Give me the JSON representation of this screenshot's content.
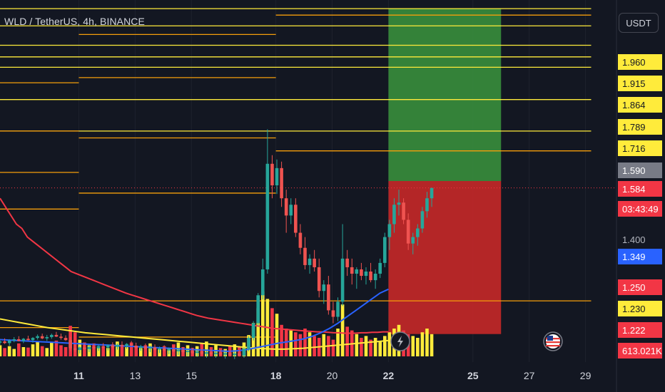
{
  "header": {
    "symbol_title": "WLD / TetherUS, 4h, BINANCE",
    "currency_button": "USDT"
  },
  "price_tags": [
    {
      "label": "1.960",
      "bg": "#ffeb3b",
      "fg": "#131722"
    },
    {
      "label": "1.915",
      "bg": "#ffeb3b",
      "fg": "#131722"
    },
    {
      "label": "1.864",
      "bg": "#ffeb3b",
      "fg": "#131722"
    },
    {
      "label": "1.789",
      "bg": "#ffeb3b",
      "fg": "#131722"
    },
    {
      "label": "1.716",
      "bg": "#ffeb3b",
      "fg": "#131722"
    },
    {
      "label": "1.590",
      "bg": "#787b86",
      "fg": "#ffffff"
    },
    {
      "label": "1.584",
      "bg": "#f23645",
      "fg": "#ffffff"
    },
    {
      "label": "03:43:49",
      "bg": "#f23645",
      "fg": "#ffffff"
    },
    {
      "label": "1.349",
      "bg": "#2962ff",
      "fg": "#ffffff"
    },
    {
      "label": "1.250",
      "bg": "#f23645",
      "fg": "#ffffff"
    },
    {
      "label": "1.230",
      "bg": "#ffeb3b",
      "fg": "#131722"
    },
    {
      "label": "1.222",
      "bg": "#f23645",
      "fg": "#ffffff"
    },
    {
      "label": "613.021K",
      "bg": "#f23645",
      "fg": "#ffffff"
    }
  ],
  "axis_label": "1.400",
  "chart_data": {
    "type": "candlestick",
    "title": "WLD / TetherUS, 4h, BINANCE",
    "ylim": [
      1.18,
      2.02
    ],
    "x_ticks": [
      "11",
      "13",
      "15",
      "18",
      "20",
      "22",
      "25",
      "27",
      "29"
    ],
    "x_tick_days": [
      11,
      13,
      15,
      18,
      20,
      22,
      25,
      27,
      29
    ],
    "xlim_days": [
      8.2,
      30.1
    ],
    "last_price": 1.584,
    "countdown": "03:43:49",
    "volume_last": "613.021K",
    "colors": {
      "up": "#26a69a",
      "down": "#ef5350",
      "vol_up": "#ffeb3b",
      "vol_down": "#f23645"
    },
    "candles_start_day": 8.2,
    "candles_step_days": 0.1667,
    "candles": [
      [
        1.225,
        1.232,
        1.22,
        1.228
      ],
      [
        1.228,
        1.235,
        1.222,
        1.224
      ],
      [
        1.224,
        1.233,
        1.218,
        1.23
      ],
      [
        1.23,
        1.238,
        1.226,
        1.233
      ],
      [
        1.233,
        1.24,
        1.228,
        1.229
      ],
      [
        1.229,
        1.236,
        1.224,
        1.234
      ],
      [
        1.234,
        1.241,
        1.23,
        1.231
      ],
      [
        1.231,
        1.238,
        1.225,
        1.236
      ],
      [
        1.236,
        1.244,
        1.232,
        1.24
      ],
      [
        1.24,
        1.246,
        1.233,
        1.235
      ],
      [
        1.235,
        1.243,
        1.229,
        1.238
      ],
      [
        1.238,
        1.246,
        1.234,
        1.243
      ],
      [
        1.243,
        1.25,
        1.238,
        1.239
      ],
      [
        1.239,
        1.246,
        1.232,
        1.236
      ],
      [
        1.236,
        1.242,
        1.229,
        1.231
      ],
      [
        1.231,
        1.238,
        1.205,
        1.212
      ],
      [
        1.212,
        1.22,
        1.204,
        1.208
      ],
      [
        1.208,
        1.216,
        1.2,
        1.214
      ],
      [
        1.214,
        1.222,
        1.208,
        1.21
      ],
      [
        1.21,
        1.218,
        1.203,
        1.215
      ],
      [
        1.215,
        1.222,
        1.209,
        1.212
      ],
      [
        1.212,
        1.22,
        1.206,
        1.217
      ],
      [
        1.217,
        1.224,
        1.211,
        1.214
      ],
      [
        1.214,
        1.221,
        1.207,
        1.219
      ],
      [
        1.219,
        1.226,
        1.212,
        1.215
      ],
      [
        1.215,
        1.223,
        1.209,
        1.22
      ],
      [
        1.22,
        1.228,
        1.214,
        1.217
      ],
      [
        1.217,
        1.224,
        1.211,
        1.222
      ],
      [
        1.222,
        1.229,
        1.216,
        1.218
      ],
      [
        1.218,
        1.225,
        1.21,
        1.213
      ],
      [
        1.213,
        1.22,
        1.206,
        1.216
      ],
      [
        1.216,
        1.223,
        1.209,
        1.211
      ],
      [
        1.211,
        1.218,
        1.203,
        1.214
      ],
      [
        1.214,
        1.221,
        1.207,
        1.209
      ],
      [
        1.209,
        1.216,
        1.201,
        1.212
      ],
      [
        1.212,
        1.219,
        1.205,
        1.207
      ],
      [
        1.207,
        1.214,
        1.198,
        1.21
      ],
      [
        1.21,
        1.217,
        1.203,
        1.205
      ],
      [
        1.205,
        1.212,
        1.196,
        1.208
      ],
      [
        1.208,
        1.215,
        1.2,
        1.203
      ],
      [
        1.203,
        1.21,
        1.194,
        1.206
      ],
      [
        1.206,
        1.213,
        1.198,
        1.201
      ],
      [
        1.201,
        1.209,
        1.192,
        1.205
      ],
      [
        1.205,
        1.212,
        1.197,
        1.199
      ],
      [
        1.199,
        1.207,
        1.19,
        1.203
      ],
      [
        1.203,
        1.21,
        1.196,
        1.198
      ],
      [
        1.198,
        1.206,
        1.19,
        1.202
      ],
      [
        1.202,
        1.209,
        1.195,
        1.197
      ],
      [
        1.197,
        1.205,
        1.188,
        1.201
      ],
      [
        1.201,
        1.209,
        1.193,
        1.196
      ],
      [
        1.196,
        1.204,
        1.187,
        1.2
      ],
      [
        1.2,
        1.208,
        1.193,
        1.195
      ],
      [
        1.195,
        1.214,
        1.19,
        1.211
      ],
      [
        1.211,
        1.24,
        1.205,
        1.236
      ],
      [
        1.236,
        1.275,
        1.23,
        1.27
      ],
      [
        1.27,
        1.34,
        1.262,
        1.335
      ],
      [
        1.335,
        1.42,
        1.325,
        1.395
      ],
      [
        1.395,
        1.72,
        1.385,
        1.64
      ],
      [
        1.64,
        1.66,
        1.56,
        1.59
      ],
      [
        1.59,
        1.65,
        1.57,
        1.63
      ],
      [
        1.63,
        1.645,
        1.54,
        1.56
      ],
      [
        1.56,
        1.58,
        1.48,
        1.52
      ],
      [
        1.52,
        1.56,
        1.5,
        1.545
      ],
      [
        1.545,
        1.56,
        1.47,
        1.48
      ],
      [
        1.48,
        1.5,
        1.43,
        1.445
      ],
      [
        1.445,
        1.47,
        1.395,
        1.405
      ],
      [
        1.405,
        1.43,
        1.385,
        1.42
      ],
      [
        1.42,
        1.44,
        1.39,
        1.4
      ],
      [
        1.4,
        1.42,
        1.33,
        1.345
      ],
      [
        1.345,
        1.37,
        1.315,
        1.36
      ],
      [
        1.36,
        1.38,
        1.29,
        1.3
      ],
      [
        1.3,
        1.32,
        1.27,
        1.285
      ],
      [
        1.285,
        1.33,
        1.275,
        1.32
      ],
      [
        1.32,
        1.5,
        1.31,
        1.42
      ],
      [
        1.42,
        1.44,
        1.38,
        1.4
      ],
      [
        1.4,
        1.42,
        1.36,
        1.385
      ],
      [
        1.385,
        1.4,
        1.35,
        1.395
      ],
      [
        1.395,
        1.41,
        1.37,
        1.38
      ],
      [
        1.38,
        1.4,
        1.36,
        1.39
      ],
      [
        1.39,
        1.41,
        1.365,
        1.37
      ],
      [
        1.37,
        1.395,
        1.35,
        1.385
      ],
      [
        1.385,
        1.42,
        1.375,
        1.41
      ],
      [
        1.41,
        1.48,
        1.4,
        1.47
      ],
      [
        1.47,
        1.51,
        1.44,
        1.5
      ],
      [
        1.5,
        1.56,
        1.48,
        1.545
      ],
      [
        1.545,
        1.58,
        1.52,
        1.55
      ],
      [
        1.55,
        1.56,
        1.5,
        1.51
      ],
      [
        1.51,
        1.525,
        1.44,
        1.455
      ],
      [
        1.455,
        1.48,
        1.43,
        1.47
      ],
      [
        1.47,
        1.5,
        1.45,
        1.49
      ],
      [
        1.49,
        1.54,
        1.48,
        1.53
      ],
      [
        1.53,
        1.575,
        1.515,
        1.56
      ],
      [
        1.56,
        1.584,
        1.54,
        1.584
      ]
    ],
    "volume_ylim": [
      0,
      1000
    ],
    "volumes": [
      120,
      90,
      110,
      80,
      140,
      100,
      95,
      130,
      160,
      110,
      90,
      150,
      170,
      120,
      100,
      330,
      260,
      180,
      150,
      120,
      140,
      110,
      100,
      90,
      130,
      160,
      120,
      100,
      150,
      110,
      90,
      120,
      140,
      100,
      80,
      110,
      90,
      130,
      150,
      100,
      120,
      90,
      110,
      140,
      160,
      100,
      120,
      90,
      80,
      110,
      130,
      100,
      150,
      230,
      360,
      520,
      700,
      620,
      520,
      460,
      340,
      300,
      280,
      260,
      240,
      300,
      260,
      220,
      200,
      240,
      220,
      180,
      300,
      560,
      320,
      280,
      240,
      200,
      220,
      180,
      200,
      160,
      220,
      260,
      300,
      340,
      280,
      240,
      220,
      200,
      260,
      300,
      240
    ],
    "ma_series": [
      {
        "color": "#f23645",
        "values": [
          1.56,
          1.54,
          1.52,
          1.5,
          1.49,
          1.47,
          1.46,
          1.45,
          1.44,
          1.43,
          1.42,
          1.41,
          1.4,
          1.39,
          1.385,
          1.38,
          1.375,
          1.37,
          1.365,
          1.36,
          1.355,
          1.35,
          1.345,
          1.34,
          1.336,
          1.332,
          1.328,
          1.324,
          1.32,
          1.316,
          1.312,
          1.308,
          1.304,
          1.3,
          1.296,
          1.292,
          1.288,
          1.285,
          1.282,
          1.28,
          1.278,
          1.276,
          1.274,
          1.272,
          1.27,
          1.268,
          1.266,
          1.264,
          1.262,
          1.26,
          1.258,
          1.257,
          1.256,
          1.255,
          1.254,
          1.253,
          1.252,
          1.251,
          1.25,
          1.25,
          1.249,
          1.248,
          1.248,
          1.247,
          1.247,
          1.247,
          1.248,
          1.248,
          1.249,
          1.249,
          1.25,
          1.25
        ]
      },
      {
        "color": "#ffeb3b",
        "values": [
          1.28,
          1.276,
          1.272,
          1.268,
          1.264,
          1.26,
          1.257,
          1.254,
          1.251,
          1.248,
          1.246,
          1.244,
          1.242,
          1.24,
          1.238,
          1.236,
          1.234,
          1.232,
          1.23,
          1.228,
          1.226,
          1.224,
          1.222,
          1.22,
          1.218,
          1.216,
          1.214,
          1.212,
          1.211,
          1.21,
          1.21,
          1.211,
          1.212,
          1.214,
          1.216,
          1.218,
          1.22,
          1.222,
          1.224,
          1.226,
          1.228,
          1.23
        ]
      },
      {
        "color": "#2962ff",
        "values": [
          1.232,
          1.231,
          1.23,
          1.229,
          1.228,
          1.227,
          1.226,
          1.225,
          1.224,
          1.223,
          1.222,
          1.221,
          1.22,
          1.219,
          1.218,
          1.217,
          1.216,
          1.215,
          1.214,
          1.213,
          1.212,
          1.211,
          1.21,
          1.209,
          1.208,
          1.207,
          1.206,
          1.205,
          1.206,
          1.208,
          1.212,
          1.216,
          1.22,
          1.224,
          1.227,
          1.23,
          1.234,
          1.24,
          1.248,
          1.258,
          1.27,
          1.284,
          1.298,
          1.312,
          1.326,
          1.34,
          1.349
        ]
      }
    ],
    "ma_start_day": [
      8.2,
      8.2,
      8.2
    ],
    "ma_end_day": [
      22.0,
      22.0,
      22.0
    ],
    "horizontal_levels": [
      {
        "price": 2.0,
        "color": "#ffeb3b",
        "from_day": 8.2,
        "to_day": 29.2
      },
      {
        "price": 1.985,
        "color": "#f59e0b",
        "from_day": 18.0,
        "to_day": 29.2
      },
      {
        "price": 1.96,
        "color": "#ffeb3b",
        "from_day": 8.2,
        "to_day": 29.2
      },
      {
        "price": 1.94,
        "color": "#f59e0b",
        "from_day": 11.0,
        "to_day": 18.0
      },
      {
        "price": 1.915,
        "color": "#ffeb3b",
        "from_day": 8.2,
        "to_day": 29.2
      },
      {
        "price": 1.888,
        "color": "#ffeb3b",
        "from_day": 8.2,
        "to_day": 29.2
      },
      {
        "price": 1.864,
        "color": "#ffeb3b",
        "from_day": 8.2,
        "to_day": 29.2
      },
      {
        "price": 1.84,
        "color": "#f59e0b",
        "from_day": 11.0,
        "to_day": 18.0
      },
      {
        "price": 1.828,
        "color": "#f59e0b",
        "from_day": 8.2,
        "to_day": 11.0
      },
      {
        "price": 1.789,
        "color": "#ffeb3b",
        "from_day": 8.2,
        "to_day": 29.2
      },
      {
        "price": 1.716,
        "color": "#ffeb3b",
        "from_day": 8.2,
        "to_day": 29.2
      },
      {
        "price": 1.716,
        "color": "#f59e0b",
        "from_day": 8.2,
        "to_day": 11.0
      },
      {
        "price": 1.7,
        "color": "#f59e0b",
        "from_day": 11.0,
        "to_day": 18.0
      },
      {
        "price": 1.67,
        "color": "#f59e0b",
        "from_day": 18.0,
        "to_day": 29.2
      },
      {
        "price": 1.62,
        "color": "#f59e0b",
        "from_day": 8.2,
        "to_day": 11.0
      },
      {
        "price": 1.572,
        "color": "#f59e0b",
        "from_day": 11.0,
        "to_day": 18.0
      },
      {
        "price": 1.535,
        "color": "#f59e0b",
        "from_day": 8.2,
        "to_day": 11.0
      },
      {
        "price": 1.322,
        "color": "#f59e0b",
        "from_day": 8.2,
        "to_day": 29.2
      },
      {
        "price": 1.26,
        "color": "#f59e0b",
        "from_day": 8.2,
        "to_day": 11.0
      },
      {
        "price": 1.238,
        "color": "#f59e0b",
        "from_day": 11.0,
        "to_day": 18.0
      }
    ],
    "position_tool": {
      "from_day": 22.0,
      "to_day": 26.0,
      "entry": 1.6,
      "target": 2.0,
      "stop": 1.245,
      "profit_color": "#388e3c",
      "loss_color": "#c62828"
    }
  }
}
